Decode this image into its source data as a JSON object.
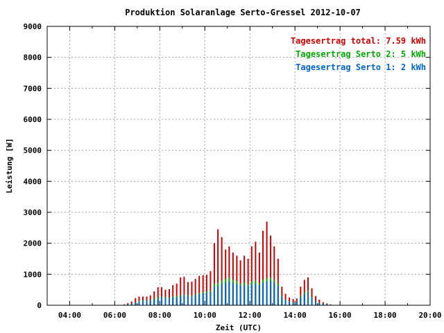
{
  "chart_data": {
    "type": "bar",
    "title": "Produktion Solaranlage Serto-Gressel 2012-10-07",
    "xlabel": "Zeit (UTC)",
    "ylabel": "Leistung [W]",
    "xlim": [
      3.0,
      20.0
    ],
    "ylim": [
      0,
      9000
    ],
    "x_ticks": [
      {
        "v": 4,
        "label": "04:00"
      },
      {
        "v": 6,
        "label": "06:00"
      },
      {
        "v": 8,
        "label": "08:00"
      },
      {
        "v": 10,
        "label": "10:00"
      },
      {
        "v": 12,
        "label": "12:00"
      },
      {
        "v": 14,
        "label": "14:00"
      },
      {
        "v": 16,
        "label": "16:00"
      },
      {
        "v": 18,
        "label": "18:00"
      },
      {
        "v": 20,
        "label": "20:00"
      }
    ],
    "y_ticks": [
      0,
      1000,
      2000,
      3000,
      4000,
      5000,
      6000,
      7000,
      8000,
      9000
    ],
    "grid": true,
    "legend_position": "top-right",
    "legend": [
      {
        "text": "Tagesertrag total: 7.59 kWh",
        "color": "#cc0000"
      },
      {
        "text": "Tagesertrag Serto 2: 5 kWh",
        "color": "#00aa00"
      },
      {
        "text": "Tagesertrag Serto 1: 2 kWh",
        "color": "#0066cc"
      }
    ],
    "colors": {
      "total": "#cc0000",
      "serto2": "#00aa00",
      "serto1": "#0066cc"
    },
    "stack_order": [
      "Serto 1",
      "Serto 2",
      "total"
    ],
    "series": [
      {
        "name": "Serto 1",
        "x": [
          6.42,
          6.58,
          6.75,
          6.92,
          7.08,
          7.25,
          7.42,
          7.58,
          7.75,
          7.92,
          8.08,
          8.25,
          8.42,
          8.58,
          8.75,
          8.92,
          9.08,
          9.25,
          9.42,
          9.58,
          9.75,
          9.92,
          10.08,
          10.25,
          10.42,
          10.58,
          10.75,
          10.92,
          11.08,
          11.25,
          11.42,
          11.58,
          11.75,
          11.92,
          12.08,
          12.25,
          12.42,
          12.58,
          12.75,
          12.92,
          13.08,
          13.25,
          13.42,
          13.58,
          13.75,
          13.92,
          14.08,
          14.25,
          14.42,
          14.58,
          14.75,
          14.92,
          15.08,
          15.25,
          15.42,
          15.58
        ],
        "values": [
          15,
          30,
          50,
          80,
          120,
          140,
          140,
          150,
          190,
          220,
          260,
          240,
          230,
          260,
          260,
          300,
          320,
          290,
          280,
          330,
          350,
          380,
          400,
          420,
          600,
          620,
          700,
          720,
          760,
          720,
          680,
          640,
          650,
          620,
          680,
          700,
          650,
          720,
          760,
          790,
          740,
          620,
          280,
          160,
          110,
          90,
          100,
          260,
          360,
          420,
          240,
          120,
          70,
          45,
          30,
          15
        ]
      },
      {
        "name": "Serto 2",
        "x": [
          6.42,
          6.58,
          6.75,
          6.92,
          7.08,
          7.25,
          7.42,
          7.58,
          7.75,
          7.92,
          8.08,
          8.25,
          8.42,
          8.58,
          8.75,
          8.92,
          9.08,
          9.25,
          9.42,
          9.58,
          9.75,
          9.92,
          10.08,
          10.25,
          10.42,
          10.58,
          10.75,
          10.92,
          11.08,
          11.25,
          11.42,
          11.58,
          11.75,
          11.92,
          12.08,
          12.25,
          12.42,
          12.58,
          12.75,
          12.92,
          13.08,
          13.25,
          13.42,
          13.58,
          13.75,
          13.92,
          14.08,
          14.25,
          14.42,
          14.58,
          14.75,
          14.92,
          15.08,
          15.25,
          15.42,
          15.58
        ],
        "values": [
          15,
          30,
          50,
          90,
          140,
          160,
          160,
          170,
          210,
          250,
          280,
          260,
          250,
          300,
          300,
          330,
          350,
          320,
          310,
          360,
          390,
          420,
          440,
          470,
          700,
          720,
          800,
          850,
          900,
          820,
          780,
          700,
          720,
          680,
          760,
          800,
          720,
          820,
          860,
          900,
          820,
          700,
          300,
          180,
          120,
          100,
          110,
          300,
          420,
          480,
          260,
          130,
          80,
          45,
          30,
          15
        ]
      },
      {
        "name": "total",
        "x": [
          6.42,
          6.58,
          6.75,
          6.92,
          7.08,
          7.25,
          7.42,
          7.58,
          7.75,
          7.92,
          8.08,
          8.25,
          8.42,
          8.58,
          8.75,
          8.92,
          9.08,
          9.25,
          9.42,
          9.58,
          9.75,
          9.92,
          10.08,
          10.25,
          10.42,
          10.58,
          10.75,
          10.92,
          11.08,
          11.25,
          11.42,
          11.58,
          11.75,
          11.92,
          12.08,
          12.25,
          12.42,
          12.58,
          12.75,
          12.92,
          13.08,
          13.25,
          13.42,
          13.58,
          13.75,
          13.92,
          14.08,
          14.25,
          14.42,
          14.58,
          14.75,
          14.92,
          15.08,
          15.25,
          15.42,
          15.58
        ],
        "values": [
          30,
          70,
          120,
          230,
          280,
          280,
          280,
          320,
          450,
          580,
          580,
          500,
          520,
          650,
          700,
          900,
          920,
          750,
          760,
          850,
          950,
          970,
          980,
          1100,
          2000,
          2450,
          2200,
          1800,
          1900,
          1700,
          1600,
          1450,
          1600,
          1500,
          1900,
          2050,
          1700,
          2400,
          2700,
          2250,
          1900,
          1500,
          600,
          370,
          250,
          200,
          220,
          600,
          820,
          900,
          550,
          300,
          180,
          100,
          60,
          30
        ]
      }
    ]
  }
}
